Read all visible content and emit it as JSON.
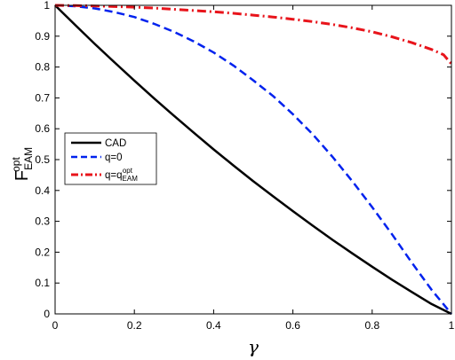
{
  "chart_data": {
    "type": "line",
    "xlabel": "γ",
    "ylabel_main": "F",
    "ylabel_sup": "opt",
    "ylabel_sub": "EAM",
    "xlim": [
      0,
      1
    ],
    "ylim": [
      0,
      1
    ],
    "xticks": [
      0,
      0.2,
      0.4,
      0.6,
      0.8,
      1
    ],
    "yticks": [
      0,
      0.1,
      0.2,
      0.3,
      0.4,
      0.5,
      0.6,
      0.7,
      0.8,
      0.9,
      1
    ],
    "xtick_labels": [
      "0",
      "0.2",
      "0.4",
      "0.6",
      "0.8",
      "1"
    ],
    "ytick_labels": [
      "0",
      "0.1",
      "0.2",
      "0.3",
      "0.4",
      "0.5",
      "0.6",
      "0.7",
      "0.8",
      "0.9",
      "1"
    ],
    "grid": false,
    "legend_position": "middle-left",
    "series": [
      {
        "name": "CAD",
        "color": "#000000",
        "style": "solid",
        "x": [
          0,
          0.05,
          0.1,
          0.15,
          0.2,
          0.25,
          0.3,
          0.35,
          0.4,
          0.45,
          0.5,
          0.55,
          0.6,
          0.65,
          0.7,
          0.75,
          0.8,
          0.85,
          0.9,
          0.95,
          1
        ],
        "y": [
          1,
          0.937,
          0.875,
          0.815,
          0.756,
          0.698,
          0.642,
          0.587,
          0.533,
          0.481,
          0.43,
          0.381,
          0.333,
          0.286,
          0.24,
          0.196,
          0.153,
          0.111,
          0.071,
          0.032,
          0
        ]
      },
      {
        "name": "q=0",
        "color": "#0022ee",
        "style": "dashed",
        "x": [
          0,
          0.05,
          0.1,
          0.15,
          0.2,
          0.25,
          0.3,
          0.35,
          0.4,
          0.45,
          0.5,
          0.55,
          0.6,
          0.65,
          0.7,
          0.75,
          0.8,
          0.85,
          0.9,
          0.95,
          1
        ],
        "y": [
          1,
          0.997,
          0.99,
          0.978,
          0.962,
          0.94,
          0.914,
          0.883,
          0.847,
          0.805,
          0.757,
          0.706,
          0.647,
          0.582,
          0.509,
          0.43,
          0.346,
          0.258,
          0.166,
          0.078,
          0
        ]
      },
      {
        "name_main": "q=q",
        "name_sup": "opt",
        "name_sub": "EAM",
        "color": "#e8141b",
        "style": "dashdot",
        "x": [
          0,
          0.05,
          0.1,
          0.15,
          0.2,
          0.25,
          0.3,
          0.35,
          0.4,
          0.45,
          0.5,
          0.55,
          0.6,
          0.65,
          0.7,
          0.75,
          0.8,
          0.85,
          0.9,
          0.95,
          0.98,
          1
        ],
        "y": [
          1,
          0.999,
          0.998,
          0.996,
          0.994,
          0.991,
          0.987,
          0.983,
          0.979,
          0.974,
          0.968,
          0.962,
          0.955,
          0.947,
          0.938,
          0.927,
          0.914,
          0.898,
          0.879,
          0.857,
          0.84,
          0.81
        ]
      }
    ]
  }
}
